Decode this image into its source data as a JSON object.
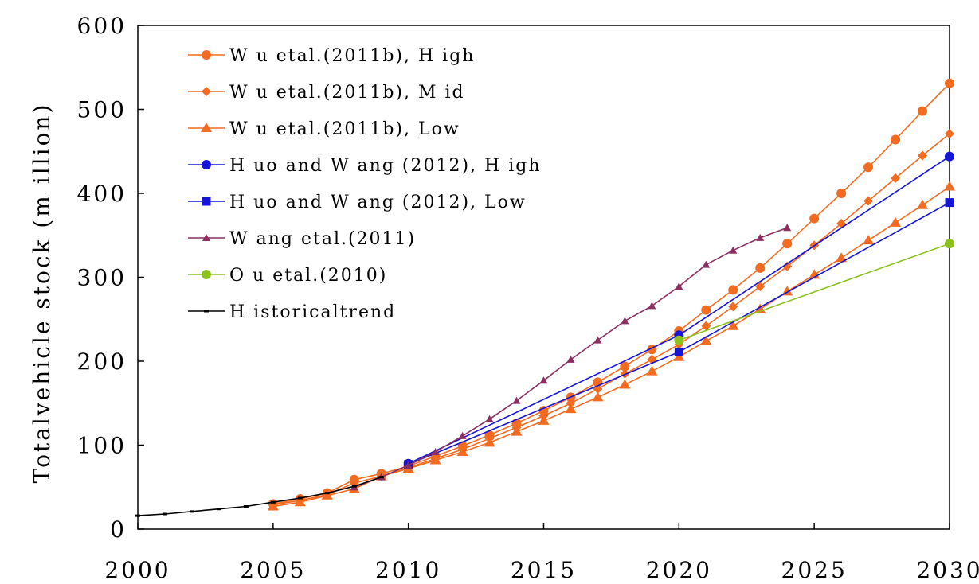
{
  "chart_data": {
    "type": "line",
    "title": "",
    "xlabel": "",
    "ylabel": "Totalvehicle stock (m illion)",
    "xlim": [
      2000,
      2030
    ],
    "ylim": [
      0,
      600
    ],
    "x_ticks": [
      "2000",
      "2005",
      "2010",
      "2015",
      "2020",
      "2025",
      "2030"
    ],
    "y_ticks": [
      "0",
      "100",
      "200",
      "300",
      "400",
      "500",
      "600"
    ],
    "grid": false,
    "legend_position": "top-left",
    "series": [
      {
        "name": "W u etal.(2011b), H igh",
        "color": "#f26b21",
        "marker": "circle",
        "x": [
          2005,
          2006,
          2007,
          2008,
          2009,
          2010,
          2011,
          2012,
          2013,
          2014,
          2015,
          2016,
          2017,
          2018,
          2019,
          2020,
          2021,
          2022,
          2023,
          2024,
          2025,
          2026,
          2027,
          2028,
          2029,
          2030
        ],
        "y": [
          30,
          36,
          43,
          59,
          66,
          75,
          87,
          99,
          112,
          126,
          141,
          157,
          175,
          194,
          214,
          236,
          261,
          285,
          311,
          340,
          370,
          400,
          431,
          464,
          498,
          531
        ]
      },
      {
        "name": "W u etal.(2011b), M id",
        "color": "#f26b21",
        "marker": "diamond",
        "x": [
          2005,
          2006,
          2007,
          2008,
          2009,
          2010,
          2011,
          2012,
          2013,
          2014,
          2015,
          2016,
          2017,
          2018,
          2019,
          2020,
          2021,
          2022,
          2023,
          2024,
          2025,
          2026,
          2027,
          2028,
          2029,
          2030
        ],
        "y": [
          29,
          34,
          41,
          55,
          63,
          73,
          84,
          95,
          108,
          121,
          135,
          150,
          167,
          185,
          202,
          220,
          242,
          265,
          289,
          313,
          338,
          364,
          391,
          418,
          445,
          471
        ]
      },
      {
        "name": "W u etal.(2011b), Low",
        "color": "#f26b21",
        "marker": "triangle",
        "x": [
          2005,
          2006,
          2007,
          2008,
          2009,
          2010,
          2011,
          2012,
          2013,
          2014,
          2015,
          2016,
          2017,
          2018,
          2019,
          2020,
          2021,
          2022,
          2023,
          2024,
          2025,
          2026,
          2027,
          2028,
          2029,
          2030
        ],
        "y": [
          27,
          32,
          40,
          48,
          63,
          72,
          82,
          92,
          103,
          116,
          129,
          143,
          157,
          172,
          188,
          205,
          224,
          242,
          262,
          283,
          303,
          323,
          344,
          365,
          386,
          408
        ]
      },
      {
        "name": "H uo and W ang (2012), H igh",
        "color": "#1515d6",
        "marker": "circle",
        "x": [
          2010,
          2020,
          2030
        ],
        "y": [
          78,
          231,
          444
        ]
      },
      {
        "name": "H uo and W ang (2012), Low",
        "color": "#1515d6",
        "marker": "square",
        "x": [
          2010,
          2020,
          2030
        ],
        "y": [
          77,
          211,
          389
        ]
      },
      {
        "name": "W ang etal.(2011)",
        "color": "#8b2f62",
        "marker": "small-triangle",
        "x": [
          2008,
          2009,
          2010,
          2011,
          2012,
          2013,
          2014,
          2015,
          2016,
          2017,
          2018,
          2019,
          2020,
          2021,
          2022,
          2023,
          2024
        ],
        "y": [
          50,
          62,
          76,
          92,
          111,
          131,
          153,
          177,
          202,
          225,
          248,
          266,
          289,
          315,
          332,
          347,
          359
        ]
      },
      {
        "name": "O u etal.(2010)",
        "color": "#8cc21e",
        "marker": "circle",
        "x": [
          2020,
          2030
        ],
        "y": [
          225,
          340
        ]
      },
      {
        "name": "H istoricaltrend",
        "color": "#000000",
        "marker": "dash",
        "x": [
          2000,
          2001,
          2002,
          2003,
          2004,
          2005,
          2006,
          2007,
          2008,
          2009
        ],
        "y": [
          16,
          18,
          21,
          24,
          27,
          32,
          37,
          43,
          51,
          62
        ]
      }
    ]
  }
}
